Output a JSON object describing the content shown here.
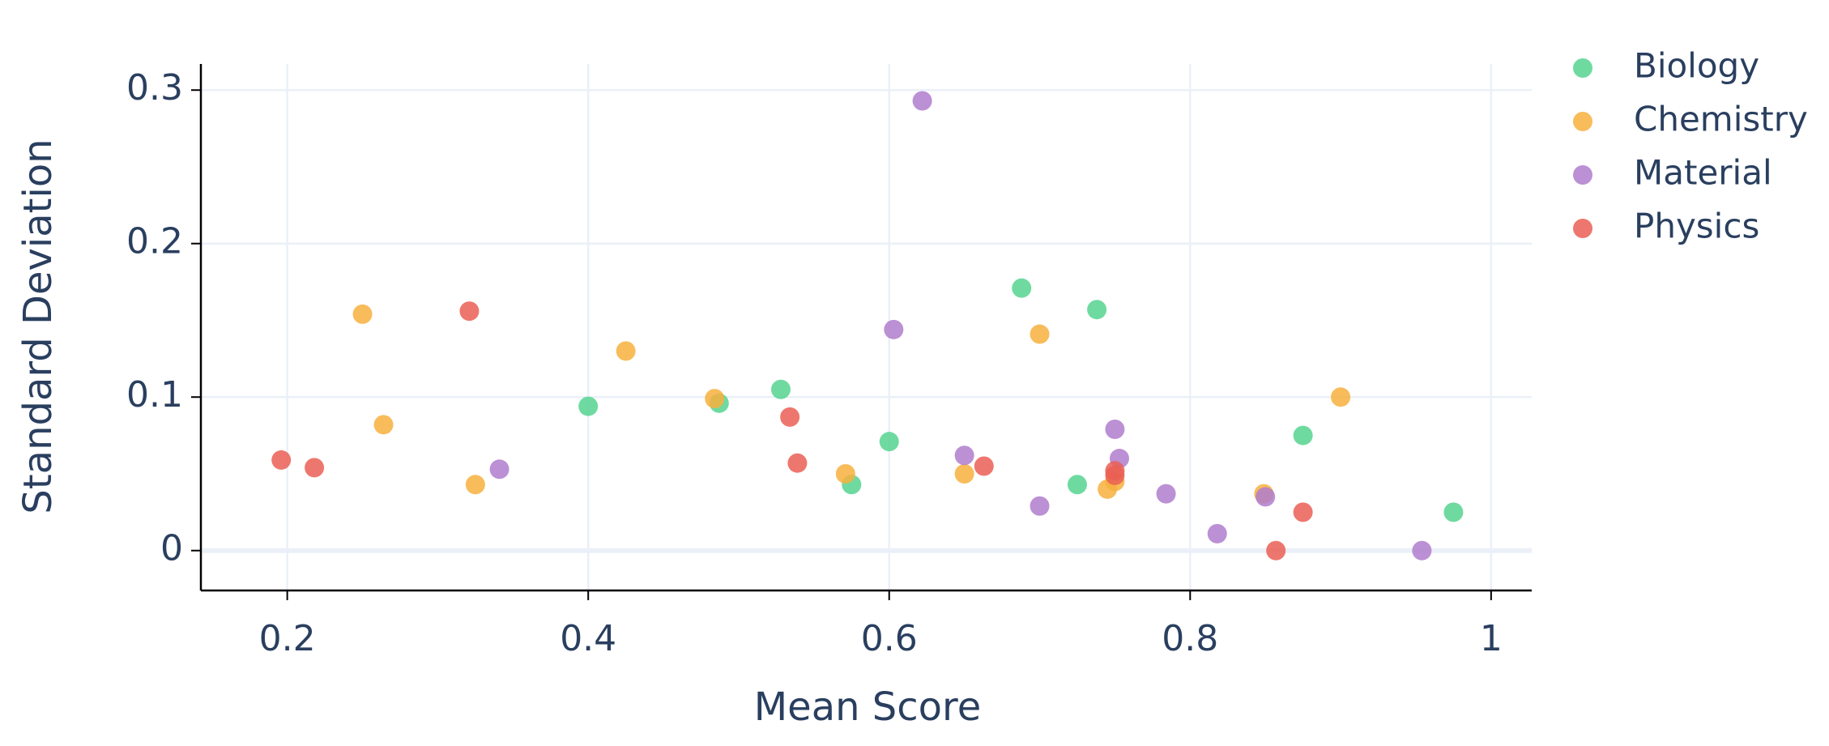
{
  "chart_data": {
    "type": "scatter",
    "x_label": "Mean Score",
    "y_label": "Standard Deviation",
    "xlim": [
      0.1426,
      1.027
    ],
    "ylim": [
      -0.026,
      0.317
    ],
    "xticks": [
      0.2,
      0.4,
      0.6,
      0.8,
      1
    ],
    "yticks": [
      0,
      0.1,
      0.2,
      0.3
    ],
    "grid": true,
    "legend": "top-right",
    "series": [
      {
        "name": "Biology",
        "color": "#56d38f",
        "x": [
          0.4,
          0.487,
          0.528,
          0.575,
          0.6,
          0.688,
          0.725,
          0.738,
          0.875,
          0.975
        ],
        "values": [
          0.094,
          0.096,
          0.105,
          0.043,
          0.071,
          0.171,
          0.043,
          0.157,
          0.075,
          0.025
        ]
      },
      {
        "name": "Chemistry",
        "color": "#f7b03e",
        "x": [
          0.25,
          0.264,
          0.325,
          0.425,
          0.484,
          0.571,
          0.65,
          0.7,
          0.745,
          0.75,
          0.849,
          0.9
        ],
        "values": [
          0.154,
          0.082,
          0.043,
          0.13,
          0.099,
          0.05,
          0.05,
          0.141,
          0.04,
          0.045,
          0.037,
          0.1
        ]
      },
      {
        "name": "Material",
        "color": "#b07ccc",
        "x": [
          0.341,
          0.603,
          0.622,
          0.65,
          0.7,
          0.75,
          0.753,
          0.784,
          0.818,
          0.85,
          0.954
        ],
        "values": [
          0.053,
          0.144,
          0.293,
          0.062,
          0.029,
          0.079,
          0.06,
          0.037,
          0.011,
          0.035,
          0
        ]
      },
      {
        "name": "Physics",
        "color": "#ea5f55",
        "x": [
          0.196,
          0.218,
          0.321,
          0.534,
          0.539,
          0.663,
          0.75,
          0.75,
          0.857,
          0.875
        ],
        "values": [
          0.059,
          0.054,
          0.156,
          0.087,
          0.057,
          0.055,
          0.052,
          0.049,
          0,
          0.025
        ]
      }
    ]
  }
}
